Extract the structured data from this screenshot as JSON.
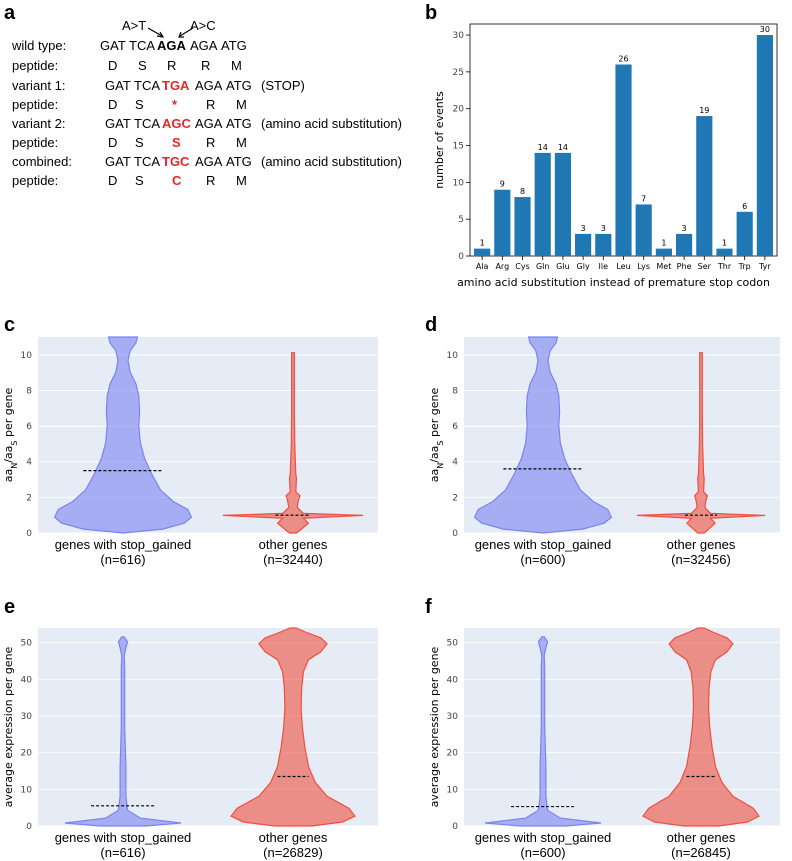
{
  "panels": {
    "a": "a",
    "b": "b",
    "c": "c",
    "d": "d",
    "e": "e",
    "f": "f"
  },
  "panel_a": {
    "arrow_left_label": "A>T",
    "arrow_right_label": "A>C",
    "rows": [
      {
        "label": "wild type:",
        "seq1": "GAT",
        "seq2": "TCA",
        "codon": "AGA",
        "seq4": "AGA",
        "seq5": "ATG",
        "note": "",
        "style": "bold"
      },
      {
        "label": "peptide:",
        "p1": "D",
        "p2": "S",
        "p3": "R",
        "p4": "R",
        "p5": "M",
        "style": "plain"
      },
      {
        "label": "variant 1:",
        "seq1": "GAT",
        "seq2": "TCA",
        "codon": "TGA",
        "seq4": "AGA",
        "seq5": "ATG",
        "note": "(STOP)",
        "style": "red"
      },
      {
        "label": "peptide:",
        "p1": "D",
        "p2": "S",
        "p3": "*",
        "p4": "R",
        "p5": "M",
        "style": "red"
      },
      {
        "label": "variant 2:",
        "seq1": "GAT",
        "seq2": "TCA",
        "codon": "AGC",
        "seq4": "AGA",
        "seq5": "ATG",
        "note": "(amino acid substitution)",
        "style": "red"
      },
      {
        "label": "peptide:",
        "p1": "D",
        "p2": "S",
        "p3": "S",
        "p4": "R",
        "p5": "M",
        "style": "red"
      },
      {
        "label": "combined:",
        "seq1": "GAT",
        "seq2": "TCA",
        "codon": "TGC",
        "seq4": "AGA",
        "seq5": "ATG",
        "note": "(amino acid substitution)",
        "style": "red"
      },
      {
        "label": "peptide:",
        "p1": "D",
        "p2": "S",
        "p3": "C",
        "p4": "R",
        "p5": "M",
        "style": "red"
      }
    ]
  },
  "chart_data": [
    {
      "id": "b",
      "type": "bar",
      "categories": [
        "Ala",
        "Arg",
        "Cys",
        "Gln",
        "Glu",
        "Gly",
        "Ile",
        "Leu",
        "Lys",
        "Met",
        "Phe",
        "Ser",
        "Thr",
        "Trp",
        "Tyr"
      ],
      "values": [
        1,
        9,
        8,
        14,
        14,
        3,
        3,
        26,
        7,
        1,
        3,
        19,
        1,
        6,
        30
      ],
      "xlabel": "amino acid substitution instead of premature stop codon",
      "ylabel": "number of events",
      "ylim": [
        0,
        31.5
      ],
      "yticks": [
        0,
        5,
        10,
        15,
        20,
        25,
        30
      ],
      "color": "#1f77b4"
    },
    {
      "id": "c",
      "type": "violin",
      "ylabel_main": "aa",
      "ylabel_sub1": "N",
      "ylabel_mid": "/aa",
      "ylabel_sub2": "S",
      "ylabel_tail": " per gene",
      "ylim": [
        0,
        11
      ],
      "yticks": [
        0,
        2,
        4,
        6,
        8,
        10
      ],
      "series": [
        {
          "name": "genes with stop_gained",
          "count_label": "(n=616)",
          "median": 3.5,
          "color": "#7b84f0"
        },
        {
          "name": "other genes",
          "count_label": "(n=32440)",
          "median": 1.0,
          "color": "#ee5040"
        }
      ]
    },
    {
      "id": "d",
      "type": "violin",
      "ylabel_main": "aa",
      "ylabel_sub1": "N",
      "ylabel_mid": "/aa",
      "ylabel_sub2": "S",
      "ylabel_tail": " per gene",
      "ylim": [
        0,
        11
      ],
      "yticks": [
        0,
        2,
        4,
        6,
        8,
        10
      ],
      "series": [
        {
          "name": "genes with stop_gained",
          "count_label": "(n=600)",
          "median": 3.6,
          "color": "#7b84f0"
        },
        {
          "name": "other genes",
          "count_label": "(n=32456)",
          "median": 1.0,
          "color": "#ee5040"
        }
      ]
    },
    {
      "id": "e",
      "type": "violin",
      "ylabel": "average expression per gene",
      "ylim": [
        0,
        54
      ],
      "yticks": [
        0,
        10,
        20,
        30,
        40,
        50
      ],
      "series": [
        {
          "name": "genes with stop_gained",
          "count_label": "(n=616)",
          "median": 5.5,
          "color": "#7b84f0"
        },
        {
          "name": "other genes",
          "count_label": "(n=26829)",
          "median": 13.5,
          "color": "#ee5040"
        }
      ]
    },
    {
      "id": "f",
      "type": "violin",
      "ylabel": "average expression per gene",
      "ylim": [
        0,
        54
      ],
      "yticks": [
        0,
        10,
        20,
        30,
        40,
        50
      ],
      "series": [
        {
          "name": "genes with stop_gained",
          "count_label": "(n=600)",
          "median": 5.3,
          "color": "#7b84f0"
        },
        {
          "name": "other genes",
          "count_label": "(n=26845)",
          "median": 13.5,
          "color": "#ee5040"
        }
      ]
    }
  ]
}
